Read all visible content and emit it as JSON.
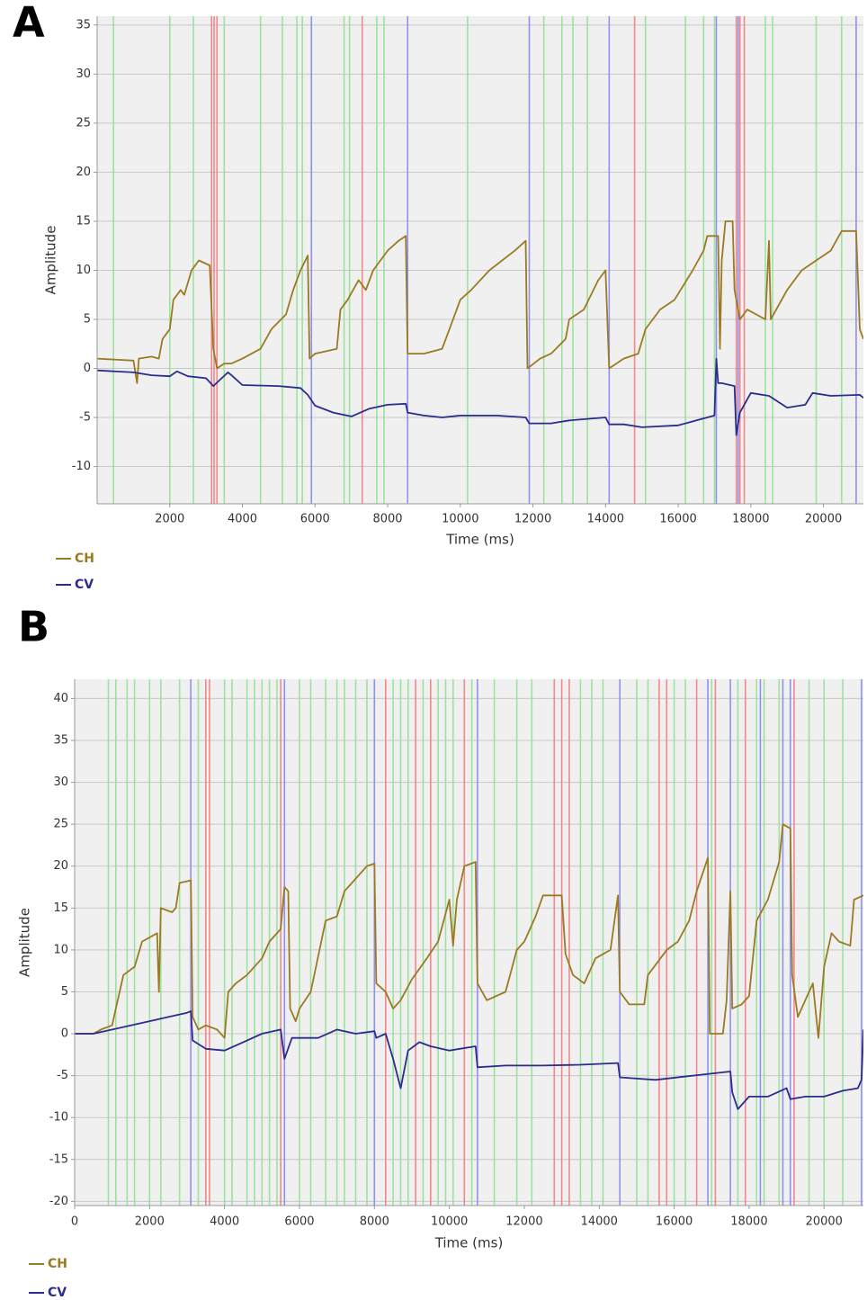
{
  "chart_data": [
    {
      "type": "line",
      "panel": "A",
      "x_label": "Time (ms)",
      "y_label": "Amplitude",
      "xlim": [
        0,
        21100
      ],
      "ylim": [
        -13.8,
        35.9
      ],
      "xticks": [
        2000,
        4000,
        6000,
        8000,
        10000,
        12000,
        14000,
        16000,
        18000,
        20000
      ],
      "yticks": [
        -10,
        -5,
        0,
        5,
        10,
        15,
        20,
        25,
        30,
        35
      ],
      "grid": true,
      "event_lines": [
        {
          "color": "#f07878",
          "x": [
            3150,
            3220,
            3300,
            7300,
            14800,
            17600,
            17700,
            17820
          ]
        },
        {
          "color": "#8fe08f",
          "x": [
            450,
            2000,
            2650,
            3500,
            4500,
            5100,
            5500,
            5650,
            6800,
            6950,
            7700,
            7900,
            10200,
            12300,
            12800,
            13100,
            13500,
            15100,
            16200,
            16700,
            17000,
            18400,
            18600,
            19800,
            20500
          ]
        },
        {
          "color": "#8080f0",
          "x": [
            5900,
            8550,
            11900,
            14100,
            17050,
            17650,
            20900
          ]
        }
      ],
      "series": [
        {
          "name": "CH",
          "color": "#9a7a22",
          "x": [
            0,
            1000,
            1100,
            1150,
            1500,
            1700,
            1800,
            2000,
            2100,
            2300,
            2400,
            2600,
            2800,
            3100,
            3200,
            3300,
            3500,
            3700,
            4000,
            4500,
            4800,
            5200,
            5400,
            5600,
            5800,
            5850,
            6000,
            6600,
            6700,
            6900,
            7200,
            7400,
            7600,
            8000,
            8300,
            8500,
            8550,
            9000,
            9500,
            9700,
            10000,
            10300,
            10800,
            11500,
            11800,
            11850,
            12200,
            12500,
            12900,
            13000,
            13400,
            13800,
            14000,
            14100,
            14500,
            14900,
            15100,
            15500,
            15900,
            16400,
            16700,
            16800,
            17100,
            17150,
            17200,
            17300,
            17500,
            17550,
            17700,
            17900,
            18400,
            18500,
            18550,
            19000,
            19400,
            19800,
            20200,
            20500,
            20900,
            21000,
            21100
          ],
          "values": [
            1,
            0.8,
            -1.5,
            1,
            1.2,
            1,
            3,
            4,
            7,
            8,
            7.5,
            10,
            11,
            10.5,
            2,
            0,
            0.5,
            0.5,
            1,
            2,
            4,
            5.5,
            8,
            10,
            11.5,
            1,
            1.5,
            2,
            6,
            7,
            9,
            8,
            10,
            12,
            13,
            13.5,
            1.5,
            1.5,
            2,
            4,
            7,
            8,
            10,
            12,
            13,
            0,
            1,
            1.5,
            3,
            5,
            6,
            9,
            10,
            0,
            1,
            1.5,
            4,
            6,
            7,
            10,
            12,
            13.5,
            13.5,
            2,
            11,
            15,
            15,
            8,
            5,
            6,
            5,
            13,
            5,
            8,
            10,
            11,
            12,
            14,
            14,
            4,
            3
          ]
        },
        {
          "name": "CV",
          "color": "#2b2d8c",
          "x": [
            0,
            1000,
            1500,
            2000,
            2200,
            2500,
            3000,
            3200,
            3400,
            3600,
            3700,
            4000,
            5000,
            5600,
            5800,
            6000,
            6500,
            7000,
            7500,
            8000,
            8500,
            8550,
            9000,
            9500,
            10000,
            11000,
            11800,
            11900,
            12500,
            13000,
            14000,
            14100,
            14500,
            15000,
            16000,
            16500,
            17000,
            17050,
            17100,
            17200,
            17550,
            17600,
            17700,
            18000,
            18500,
            19000,
            19500,
            19700,
            20200,
            21000,
            21100
          ],
          "values": [
            -0.2,
            -0.4,
            -0.7,
            -0.8,
            -0.3,
            -0.8,
            -1,
            -1.8,
            -1.1,
            -0.4,
            -0.7,
            -1.7,
            -1.8,
            -2,
            -2.7,
            -3.8,
            -4.5,
            -4.9,
            -4.1,
            -3.7,
            -3.6,
            -4.5,
            -4.8,
            -5,
            -4.8,
            -4.8,
            -5,
            -5.6,
            -5.6,
            -5.3,
            -5,
            -5.7,
            -5.7,
            -6,
            -5.8,
            -5.3,
            -4.8,
            1,
            -1.5,
            -1.5,
            -1.8,
            -6.8,
            -4.5,
            -2.5,
            -2.8,
            -4,
            -3.7,
            -2.5,
            -2.8,
            -2.7,
            -3
          ]
        }
      ]
    },
    {
      "type": "line",
      "panel": "B",
      "x_label": "Time (ms)",
      "y_label": "Amplitude",
      "xlim": [
        0,
        21050
      ],
      "ylim": [
        -20.5,
        42.3
      ],
      "xticks": [
        0,
        2000,
        4000,
        6000,
        8000,
        10000,
        12000,
        14000,
        16000,
        18000,
        20000
      ],
      "yticks": [
        -20,
        -15,
        -10,
        -5,
        0,
        5,
        10,
        15,
        20,
        25,
        30,
        35,
        40
      ],
      "grid": true,
      "event_lines": [
        {
          "color": "#f07878",
          "x": [
            3500,
            3600,
            5500,
            8300,
            9100,
            9500,
            10400,
            12800,
            13000,
            13200,
            15600,
            15800,
            16600,
            17100,
            17900,
            19200
          ]
        },
        {
          "color": "#8fe08f",
          "x": [
            900,
            1100,
            1400,
            1600,
            2000,
            2300,
            2800,
            3300,
            4000,
            4200,
            4600,
            4800,
            5000,
            5200,
            5400,
            6000,
            6300,
            6700,
            7000,
            7200,
            7500,
            7800,
            8500,
            8700,
            8900,
            9300,
            9700,
            9900,
            10100,
            10600,
            11200,
            11800,
            12200,
            13500,
            13800,
            14100,
            15000,
            15300,
            16000,
            16300,
            17000,
            17700,
            18200,
            18400,
            18800,
            19600,
            20000,
            20500
          ]
        },
        {
          "color": "#8080f0",
          "x": [
            3100,
            5600,
            8000,
            10750,
            14550,
            16900,
            17500,
            18300,
            18900,
            19100,
            21000
          ]
        }
      ],
      "series": [
        {
          "name": "CH",
          "color": "#9a7a22",
          "x": [
            0,
            500,
            700,
            1000,
            1100,
            1300,
            1600,
            1800,
            2200,
            2250,
            2300,
            2600,
            2700,
            2800,
            3100,
            3150,
            3300,
            3500,
            3800,
            4000,
            4100,
            4300,
            4600,
            5000,
            5200,
            5500,
            5600,
            5700,
            5750,
            5900,
            6000,
            6300,
            6700,
            7000,
            7200,
            7400,
            7800,
            8000,
            8050,
            8300,
            8500,
            8700,
            9000,
            9400,
            9700,
            10000,
            10100,
            10200,
            10400,
            10700,
            10750,
            11000,
            11500,
            11800,
            12000,
            12300,
            12500,
            13000,
            13100,
            13300,
            13600,
            13900,
            14300,
            14500,
            14550,
            14800,
            15200,
            15300,
            15800,
            16100,
            16400,
            16600,
            16900,
            16950,
            17300,
            17400,
            17500,
            17550,
            17800,
            18000,
            18200,
            18500,
            18800,
            18900,
            19100,
            19150,
            19300,
            19500,
            19700,
            19850,
            20000,
            20200,
            20400,
            20700,
            20800,
            21050
          ],
          "values": [
            0,
            0,
            0.5,
            1,
            3,
            7,
            8,
            11,
            12,
            5,
            15,
            14.5,
            15,
            18,
            18.3,
            2,
            0.5,
            1,
            0.5,
            -0.5,
            5,
            6,
            7,
            9,
            11,
            12.5,
            17.5,
            17,
            3,
            1.5,
            3,
            5,
            13.5,
            14,
            17,
            18,
            20,
            20.3,
            6,
            5,
            3,
            4,
            6.5,
            9,
            11,
            16,
            10.5,
            16,
            20,
            20.5,
            6,
            4,
            5,
            10,
            11,
            14,
            16.5,
            16.5,
            9.5,
            7,
            6,
            9,
            10,
            16.5,
            5,
            3.5,
            3.5,
            7,
            10,
            11,
            13.5,
            17,
            21,
            0,
            0,
            4,
            17,
            3,
            3.5,
            4.5,
            13.5,
            16,
            20.5,
            25,
            24.5,
            7,
            2,
            4,
            6,
            -0.5,
            8,
            12,
            11,
            10.5,
            16,
            16.5
          ]
        },
        {
          "name": "CV",
          "color": "#2b2d8c",
          "x": [
            0,
            500,
            1000,
            1500,
            2000,
            2500,
            3000,
            3100,
            3150,
            3500,
            4000,
            4500,
            5000,
            5500,
            5600,
            5800,
            6500,
            7000,
            7500,
            8000,
            8050,
            8300,
            8500,
            8700,
            8900,
            9200,
            9500,
            10000,
            10700,
            10750,
            11500,
            12500,
            13500,
            14500,
            14550,
            15500,
            16500,
            17500,
            17550,
            17700,
            18000,
            18500,
            19000,
            19100,
            19500,
            20000,
            20500,
            20900,
            21000,
            21050
          ],
          "values": [
            0,
            0,
            0.5,
            1,
            1.5,
            2,
            2.5,
            2.7,
            -0.8,
            -1.8,
            -2,
            -1,
            0,
            0.5,
            -3,
            -0.5,
            -0.5,
            0.5,
            0,
            0.3,
            -0.5,
            0,
            -3,
            -6.5,
            -2,
            -1,
            -1.5,
            -2,
            -1.5,
            -4,
            -3.8,
            -3.8,
            -3.7,
            -3.5,
            -5.2,
            -5.5,
            -5,
            -4.5,
            -7,
            -9,
            -7.5,
            -7.5,
            -6.5,
            -7.8,
            -7.5,
            -7.5,
            -6.8,
            -6.5,
            -5.5,
            0.5
          ]
        }
      ]
    }
  ]
}
